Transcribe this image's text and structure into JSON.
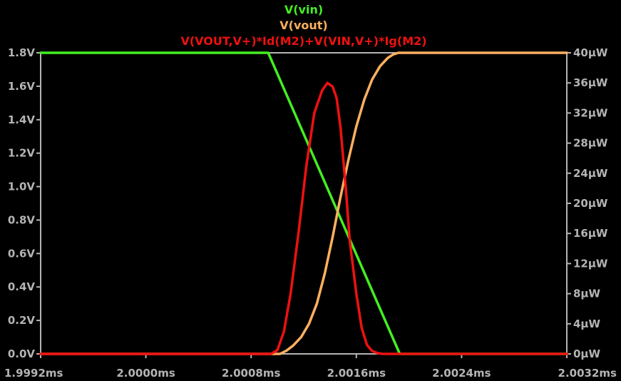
{
  "chart_data": {
    "type": "line",
    "title": "",
    "xlabel": "",
    "ylabel": "",
    "y2label": "",
    "background": "#000000",
    "axis_color": "#b4b4b4",
    "grid": false,
    "legend_placement": "top-center",
    "xlim": [
      1.9992,
      2.0032
    ],
    "ylim": [
      0,
      1.8
    ],
    "y2lim": [
      0,
      40
    ],
    "x_ticks": [
      "1.9992ms",
      "2.0000ms",
      "2.0008ms",
      "2.0016ms",
      "2.0024ms",
      "2.0032ms"
    ],
    "x_tick_values": [
      1.9992,
      2.0,
      2.0008,
      2.0016,
      2.0024,
      2.0032
    ],
    "y_ticks": [
      "0.0V",
      "0.2V",
      "0.4V",
      "0.6V",
      "0.8V",
      "1.0V",
      "1.2V",
      "1.4V",
      "1.6V",
      "1.8V"
    ],
    "y_tick_values": [
      0,
      0.2,
      0.4,
      0.6,
      0.8,
      1.0,
      1.2,
      1.4,
      1.6,
      1.8
    ],
    "y2_ticks": [
      "0µW",
      "4µW",
      "8µW",
      "12µW",
      "16µW",
      "20µW",
      "24µW",
      "28µW",
      "32µW",
      "36µW",
      "40µW"
    ],
    "y2_tick_values": [
      0,
      4,
      8,
      12,
      16,
      20,
      24,
      28,
      32,
      36,
      40
    ],
    "series": [
      {
        "name": "V(vin)",
        "color": "#44ee22",
        "axis": "left",
        "x": [
          1.9992,
          2.00093,
          2.00193,
          2.0032
        ],
        "y": [
          1.8,
          1.8,
          0.0,
          0.0
        ]
      },
      {
        "name": "V(vout)",
        "color": "#ffb060",
        "axis": "left",
        "x": [
          1.9992,
          2.00102,
          2.00107,
          2.00112,
          2.00118,
          2.00124,
          2.0013,
          2.00136,
          2.00142,
          2.00148,
          2.00154,
          2.0016,
          2.00166,
          2.00172,
          2.00178,
          2.00184,
          2.00188,
          2.00192,
          2.00198,
          2.0032
        ],
        "y": [
          0.0,
          0.0,
          0.02,
          0.05,
          0.1,
          0.18,
          0.3,
          0.48,
          0.7,
          0.94,
          1.16,
          1.36,
          1.52,
          1.64,
          1.72,
          1.77,
          1.79,
          1.8,
          1.8,
          1.8
        ]
      },
      {
        "name": "V(VOUT,V+)*Id(M2)+V(VIN,V+)*Ig(M2)",
        "color": "#ee1111",
        "axis": "right",
        "x": [
          1.9992,
          2.00095,
          2.001,
          2.00105,
          2.0011,
          2.00116,
          2.00122,
          2.00128,
          2.00134,
          2.00138,
          2.00142,
          2.00145,
          2.00148,
          2.00152,
          2.00155,
          2.0016,
          2.00164,
          2.00168,
          2.00172,
          2.00176,
          2.0018,
          2.00186,
          2.0032
        ],
        "y": [
          0,
          0,
          0.5,
          3,
          8,
          16,
          25,
          32,
          35,
          36,
          35.5,
          34,
          30,
          22,
          15,
          8,
          3.5,
          1.2,
          0.4,
          0.1,
          0,
          0,
          0
        ]
      }
    ]
  }
}
